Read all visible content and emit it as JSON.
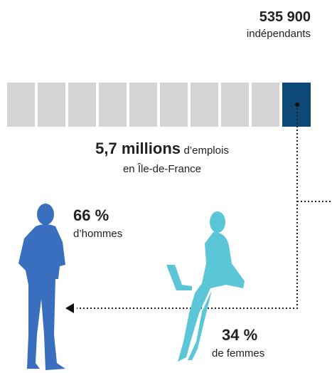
{
  "highlight": {
    "value": "535 900",
    "label": "indépendants"
  },
  "total": {
    "value": "5,7 millions",
    "label": "d’emplois",
    "place": "en Île-de-France"
  },
  "men": {
    "value": "66 %",
    "label": "d’hommes"
  },
  "women": {
    "value": "34 %",
    "label": "de femmes"
  }
}
